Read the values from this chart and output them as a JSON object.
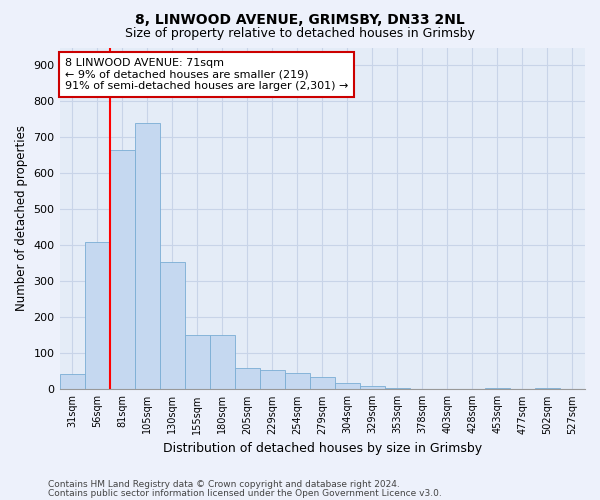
{
  "title1": "8, LINWOOD AVENUE, GRIMSBY, DN33 2NL",
  "title2": "Size of property relative to detached houses in Grimsby",
  "xlabel": "Distribution of detached houses by size in Grimsby",
  "ylabel": "Number of detached properties",
  "bar_labels": [
    "31sqm",
    "56sqm",
    "81sqm",
    "105sqm",
    "130sqm",
    "155sqm",
    "180sqm",
    "205sqm",
    "229sqm",
    "254sqm",
    "279sqm",
    "304sqm",
    "329sqm",
    "353sqm",
    "378sqm",
    "403sqm",
    "428sqm",
    "453sqm",
    "477sqm",
    "502sqm",
    "527sqm"
  ],
  "bar_values": [
    42,
    410,
    665,
    740,
    355,
    150,
    150,
    60,
    55,
    45,
    35,
    18,
    8,
    5,
    0,
    0,
    0,
    5,
    0,
    5,
    0
  ],
  "bar_color": "#c5d8f0",
  "bar_edge_color": "#7aadd4",
  "red_line_x": 1.5,
  "annotation_text": "8 LINWOOD AVENUE: 71sqm\n← 9% of detached houses are smaller (219)\n91% of semi-detached houses are larger (2,301) →",
  "annotation_box_color": "#ffffff",
  "annotation_box_edge": "#cc0000",
  "ylim": [
    0,
    950
  ],
  "yticks": [
    0,
    100,
    200,
    300,
    400,
    500,
    600,
    700,
    800,
    900
  ],
  "footer1": "Contains HM Land Registry data © Crown copyright and database right 2024.",
  "footer2": "Contains public sector information licensed under the Open Government Licence v3.0.",
  "bg_color": "#edf1fb",
  "plot_bg_color": "#e4ecf7",
  "grid_color": "#c8d4e8"
}
